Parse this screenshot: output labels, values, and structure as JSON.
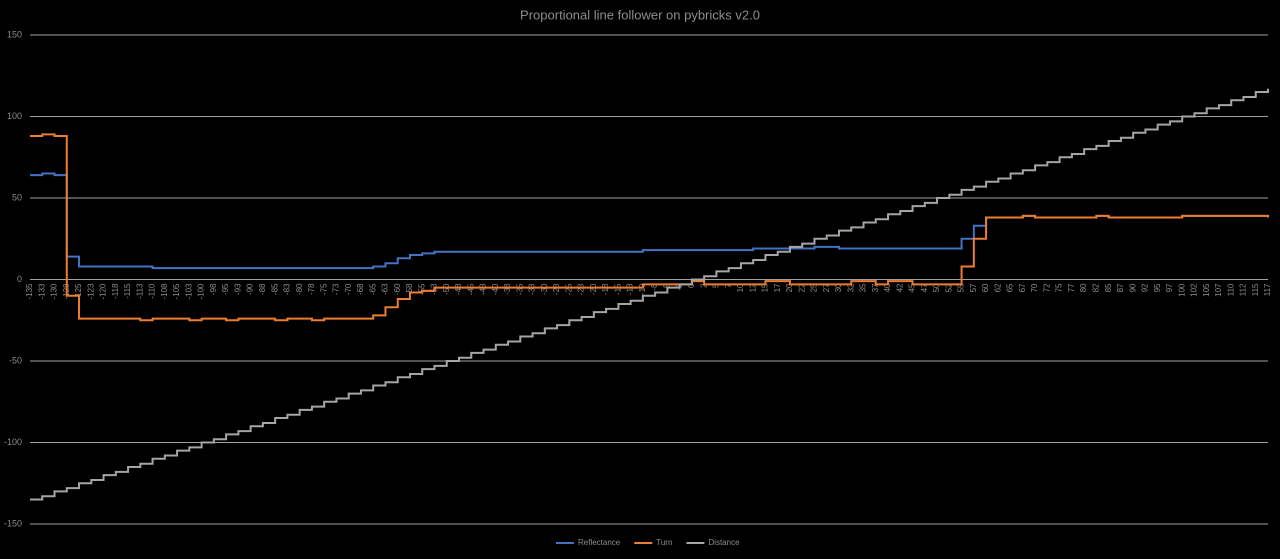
{
  "chart_data": {
    "type": "line",
    "title": "Proportional line follower  on pybricks v2.0",
    "categories": [
      -135,
      -133,
      -130,
      -128,
      -125,
      -123,
      -120,
      -118,
      -115,
      -113,
      -110,
      -108,
      -105,
      -103,
      -100,
      -98,
      -95,
      -93,
      -90,
      -88,
      -85,
      -83,
      -80,
      -78,
      -75,
      -73,
      -70,
      -68,
      -65,
      -63,
      -60,
      -58,
      -55,
      -53,
      -50,
      -48,
      -45,
      -43,
      -40,
      -38,
      -35,
      -33,
      -30,
      -28,
      -25,
      -23,
      -20,
      -18,
      -15,
      -13,
      -10,
      -8,
      -5,
      -3,
      0,
      2,
      5,
      7,
      10,
      12,
      15,
      17,
      20,
      22,
      25,
      27,
      30,
      32,
      35,
      37,
      40,
      42,
      45,
      47,
      50,
      52,
      55,
      57,
      60,
      62,
      65,
      67,
      70,
      72,
      75,
      77,
      80,
      82,
      85,
      87,
      90,
      92,
      95,
      97,
      100,
      102,
      105,
      107,
      110,
      112,
      115,
      117
    ],
    "series": [
      {
        "name": "Reflectance",
        "color": "#4472c4",
        "values": [
          64,
          65,
          64,
          14,
          8,
          8,
          8,
          8,
          8,
          8,
          7,
          7,
          7,
          7,
          7,
          7,
          7,
          7,
          7,
          7,
          7,
          7,
          7,
          7,
          7,
          7,
          7,
          7,
          8,
          10,
          13,
          15,
          16,
          17,
          17,
          17,
          17,
          17,
          17,
          17,
          17,
          17,
          17,
          17,
          17,
          17,
          17,
          17,
          17,
          17,
          18,
          18,
          18,
          18,
          18,
          18,
          18,
          18,
          18,
          19,
          19,
          19,
          19,
          19,
          20,
          20,
          19,
          19,
          19,
          19,
          19,
          19,
          19,
          19,
          19,
          19,
          25,
          33,
          38,
          38,
          38,
          39,
          38,
          38,
          38,
          38,
          38,
          39,
          38,
          38,
          38,
          38,
          38,
          38,
          39,
          39,
          39,
          39,
          39,
          39,
          39,
          38
        ]
      },
      {
        "name": "Turn",
        "color": "#ed7d31",
        "values": [
          88,
          89,
          88,
          -10,
          -24,
          -24,
          -24,
          -24,
          -24,
          -25,
          -24,
          -24,
          -24,
          -25,
          -24,
          -24,
          -25,
          -24,
          -24,
          -24,
          -25,
          -24,
          -24,
          -25,
          -24,
          -24,
          -24,
          -24,
          -22,
          -17,
          -12,
          -8,
          -7,
          -5,
          -5,
          -5,
          -5,
          -5,
          -5,
          -5,
          -5,
          -5,
          -5,
          -5,
          -5,
          -5,
          -5,
          -5,
          -5,
          -5,
          -3,
          -3,
          -3,
          -3,
          -1,
          -3,
          -3,
          -3,
          -3,
          -3,
          -1,
          -1,
          -3,
          -3,
          -3,
          -3,
          -3,
          -1,
          -1,
          -3,
          -1,
          -1,
          -3,
          -3,
          -3,
          -3,
          8,
          25,
          38,
          38,
          38,
          39,
          38,
          38,
          38,
          38,
          38,
          39,
          38,
          38,
          38,
          38,
          38,
          38,
          39,
          39,
          39,
          39,
          39,
          39,
          39,
          38
        ]
      },
      {
        "name": "Distance",
        "color": "#a5a5a5",
        "values": [
          -135,
          -133,
          -130,
          -128,
          -125,
          -123,
          -120,
          -118,
          -115,
          -113,
          -110,
          -108,
          -105,
          -103,
          -100,
          -98,
          -95,
          -93,
          -90,
          -88,
          -85,
          -83,
          -80,
          -78,
          -75,
          -73,
          -70,
          -68,
          -65,
          -63,
          -60,
          -58,
          -55,
          -53,
          -50,
          -48,
          -45,
          -43,
          -40,
          -38,
          -35,
          -33,
          -30,
          -28,
          -25,
          -23,
          -20,
          -18,
          -15,
          -13,
          -10,
          -8,
          -5,
          -3,
          0,
          2,
          5,
          7,
          10,
          12,
          15,
          17,
          20,
          22,
          25,
          27,
          30,
          32,
          35,
          37,
          40,
          42,
          45,
          47,
          50,
          52,
          55,
          57,
          60,
          62,
          65,
          67,
          70,
          72,
          75,
          77,
          80,
          82,
          85,
          87,
          90,
          92,
          95,
          97,
          100,
          102,
          105,
          107,
          110,
          112,
          115,
          117
        ]
      }
    ],
    "ylim": [
      -150,
      150
    ],
    "yticks": [
      -150,
      -100,
      -50,
      0,
      50,
      100,
      150
    ],
    "grid": true,
    "legend": "bottom"
  }
}
